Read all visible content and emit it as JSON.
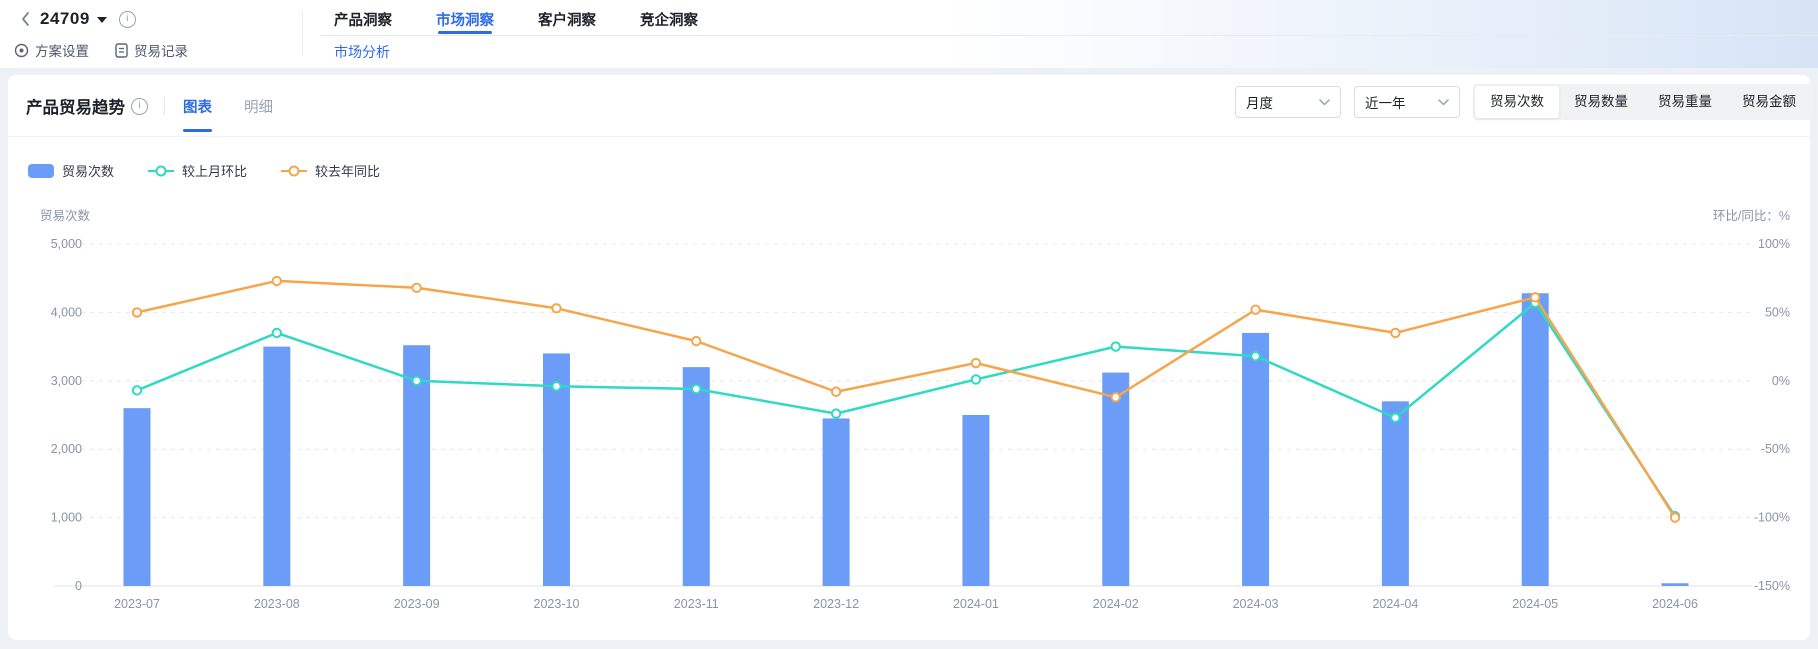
{
  "topbar": {
    "plan_id": "24709",
    "tools": [
      {
        "label": "方案设置"
      },
      {
        "label": "贸易记录"
      }
    ],
    "tabs": [
      {
        "label": "产品洞察",
        "active": false
      },
      {
        "label": "市场洞察",
        "active": true
      },
      {
        "label": "客户洞察",
        "active": false
      },
      {
        "label": "竞企洞察",
        "active": false
      }
    ],
    "subtab": "市场分析"
  },
  "panel": {
    "title": "产品贸易趋势",
    "view_tabs": [
      {
        "label": "图表",
        "active": true
      },
      {
        "label": "明细",
        "active": false
      }
    ],
    "period_select": {
      "value": "月度"
    },
    "range_select": {
      "value": "近一年"
    },
    "metric_buttons": [
      {
        "label": "贸易次数",
        "active": true
      },
      {
        "label": "贸易数量",
        "active": false
      },
      {
        "label": "贸易重量",
        "active": false
      },
      {
        "label": "贸易金额",
        "active": false
      }
    ]
  },
  "colors": {
    "accent_blue": "#2e6be6",
    "bar_blue": "#6a9cf8",
    "teal": "#2fd9c4",
    "orange": "#f7a54b",
    "axis_text": "#8a94a6",
    "gridline": "#e4e8ef"
  },
  "chart_data": {
    "type": "bar+line",
    "title": "产品贸易趋势",
    "categories": [
      "2023-07",
      "2023-08",
      "2023-09",
      "2023-10",
      "2023-11",
      "2023-12",
      "2024-01",
      "2024-02",
      "2024-03",
      "2024-04",
      "2024-05",
      "2024-06"
    ],
    "series": [
      {
        "name": "贸易次数",
        "type": "bar",
        "axis": "left",
        "color": "#6a9cf8",
        "values": [
          2600,
          3500,
          3520,
          3400,
          3200,
          2450,
          2500,
          3120,
          3700,
          2700,
          4280,
          40
        ]
      },
      {
        "name": "较上月环比",
        "type": "line",
        "axis": "right",
        "color": "#2fd9c4",
        "values": [
          -7,
          35,
          0,
          -4,
          -6,
          -24,
          1,
          25,
          18,
          -27,
          57,
          -99
        ]
      },
      {
        "name": "较去年同比",
        "type": "line",
        "axis": "right",
        "color": "#f7a54b",
        "values": [
          50,
          73,
          68,
          53,
          29,
          -8,
          13,
          -12,
          52,
          35,
          61,
          -100
        ]
      }
    ],
    "left_axis": {
      "title": "贸易次数",
      "min": 0,
      "max": 5000,
      "ticks": [
        "5,000",
        "4,000",
        "3,000",
        "2,000",
        "1,000",
        "0"
      ]
    },
    "right_axis": {
      "title": "环比/同比：%",
      "min": -150,
      "max": 100,
      "ticks": [
        "100%",
        "50%",
        "0%",
        "-50%",
        "-100%",
        "-150%"
      ]
    },
    "grid": "horizontal-dashed",
    "legend_position": "top-left"
  }
}
